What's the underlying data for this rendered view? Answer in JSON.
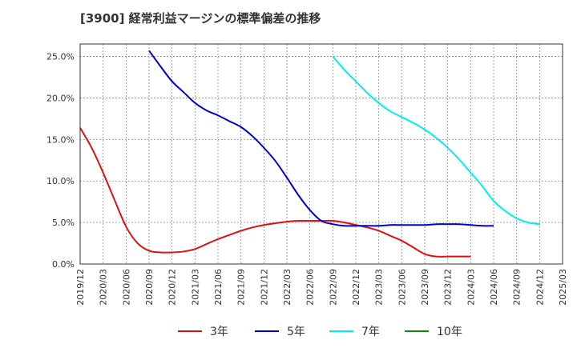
{
  "chart_data": {
    "type": "line",
    "title": "[3900]  経常利益マージンの標準偏差の推移",
    "y_ticks": [
      "0.0%",
      "5.0%",
      "10.0%",
      "15.0%",
      "20.0%",
      "25.0%"
    ],
    "ylim": [
      0,
      0.265
    ],
    "x_ticks": [
      "2019/12",
      "2020/03",
      "2020/06",
      "2020/09",
      "2020/12",
      "2021/03",
      "2021/06",
      "2021/09",
      "2021/12",
      "2022/03",
      "2022/06",
      "2022/09",
      "2022/12",
      "2023/03",
      "2023/06",
      "2023/09",
      "2023/12",
      "2024/03",
      "2024/06",
      "2024/09",
      "2024/12",
      "2025/03"
    ],
    "grid": true,
    "legend_position": "bottom",
    "series": [
      {
        "name": "3年",
        "color": "#dd1111",
        "points": [
          [
            0,
            0.164
          ],
          [
            0.5,
            0.14
          ],
          [
            1,
            0.11
          ],
          [
            1.5,
            0.077
          ],
          [
            2,
            0.045
          ],
          [
            2.5,
            0.025
          ],
          [
            3,
            0.016
          ],
          [
            3.5,
            0.014
          ],
          [
            4,
            0.014
          ],
          [
            4.5,
            0.015
          ],
          [
            5,
            0.018
          ],
          [
            5.5,
            0.024
          ],
          [
            6,
            0.03
          ],
          [
            6.5,
            0.035
          ],
          [
            7,
            0.04
          ],
          [
            7.5,
            0.044
          ],
          [
            8,
            0.047
          ],
          [
            8.5,
            0.049
          ],
          [
            9,
            0.051
          ],
          [
            9.5,
            0.052
          ],
          [
            10,
            0.052
          ],
          [
            10.5,
            0.052
          ],
          [
            11,
            0.052
          ],
          [
            11.5,
            0.05
          ],
          [
            12,
            0.047
          ],
          [
            12.5,
            0.044
          ],
          [
            13,
            0.04
          ],
          [
            13.5,
            0.034
          ],
          [
            14,
            0.028
          ],
          [
            14.5,
            0.02
          ],
          [
            15,
            0.012
          ],
          [
            15.5,
            0.009
          ],
          [
            16,
            0.009
          ],
          [
            16.5,
            0.009
          ],
          [
            17,
            0.009
          ]
        ]
      },
      {
        "name": "5年",
        "color": "#0000cc",
        "points": [
          [
            3,
            0.257
          ],
          [
            3.5,
            0.238
          ],
          [
            4,
            0.22
          ],
          [
            4.5,
            0.207
          ],
          [
            5,
            0.194
          ],
          [
            5.5,
            0.185
          ],
          [
            6,
            0.179
          ],
          [
            6.5,
            0.172
          ],
          [
            7,
            0.165
          ],
          [
            7.5,
            0.154
          ],
          [
            8,
            0.14
          ],
          [
            8.5,
            0.124
          ],
          [
            9,
            0.104
          ],
          [
            9.5,
            0.083
          ],
          [
            10,
            0.065
          ],
          [
            10.5,
            0.052
          ],
          [
            11,
            0.048
          ],
          [
            11.5,
            0.046
          ],
          [
            12,
            0.046
          ],
          [
            12.5,
            0.046
          ],
          [
            13,
            0.046
          ],
          [
            13.5,
            0.047
          ],
          [
            14,
            0.047
          ],
          [
            14.5,
            0.047
          ],
          [
            15,
            0.047
          ],
          [
            15.5,
            0.048
          ],
          [
            16,
            0.048
          ],
          [
            16.5,
            0.048
          ],
          [
            17,
            0.047
          ],
          [
            17.5,
            0.046
          ],
          [
            18,
            0.046
          ]
        ]
      },
      {
        "name": "7年",
        "color": "#00eeee",
        "points": [
          [
            11,
            0.25
          ],
          [
            11.5,
            0.234
          ],
          [
            12,
            0.22
          ],
          [
            12.5,
            0.206
          ],
          [
            13,
            0.194
          ],
          [
            13.5,
            0.184
          ],
          [
            14,
            0.177
          ],
          [
            14.5,
            0.17
          ],
          [
            15,
            0.162
          ],
          [
            15.5,
            0.152
          ],
          [
            16,
            0.14
          ],
          [
            16.5,
            0.126
          ],
          [
            17,
            0.11
          ],
          [
            17.5,
            0.094
          ],
          [
            18,
            0.076
          ],
          [
            18.5,
            0.064
          ],
          [
            19,
            0.055
          ],
          [
            19.5,
            0.05
          ],
          [
            20,
            0.048
          ]
        ]
      },
      {
        "name": "10年",
        "color": "#118811",
        "points": []
      }
    ]
  }
}
